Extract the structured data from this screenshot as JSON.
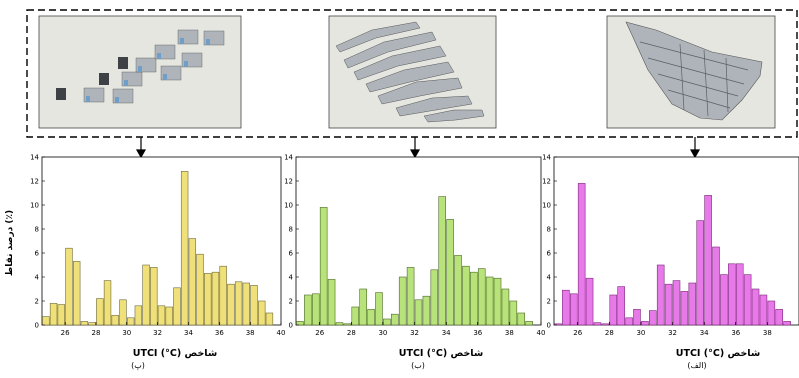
{
  "ylabel": "درصد نقاط (٪)",
  "caption_tags": [
    "(پ)",
    "(ب)",
    "(الف)"
  ],
  "colors": {
    "panel_bg": "#e6e6e0",
    "frame_dash": "#000000",
    "building": "#aeb4ba",
    "building_dark": "#3e4247",
    "building_blue": "#6f9ec8"
  },
  "chart_data": [
    {
      "type": "bar",
      "caption": "(پ)",
      "xlabel": "UTCI (°C)  شاخص",
      "xlim": [
        24.5,
        40
      ],
      "ylim": [
        0,
        14
      ],
      "xticks": [
        26,
        28,
        30,
        32,
        34,
        36,
        38,
        40
      ],
      "yticks": [
        0,
        2,
        4,
        6,
        8,
        10,
        12,
        14
      ],
      "bar_color": "#efe07a",
      "bar_edge": "#6e6a3a",
      "series": [
        {
          "x": [
            24.75,
            25.25,
            25.75,
            26.25,
            26.75,
            27.25,
            27.75,
            28.25,
            28.75,
            29.25,
            29.75,
            30.25,
            30.75,
            31.25,
            31.75,
            32.25,
            32.75,
            33.25,
            33.75,
            34.25,
            34.75,
            35.25,
            35.75,
            36.25,
            36.75,
            37.25,
            37.75,
            38.25,
            38.75,
            39.25
          ],
          "values": [
            0.7,
            1.8,
            1.7,
            6.4,
            5.3,
            0.3,
            0.2,
            2.2,
            3.7,
            0.8,
            2.1,
            0.6,
            1.6,
            5.0,
            4.8,
            1.6,
            1.5,
            3.1,
            12.8,
            7.2,
            5.9,
            4.3,
            4.4,
            4.9,
            3.4,
            3.6,
            3.5,
            3.3,
            2.0,
            1.0
          ]
        }
      ]
    },
    {
      "type": "bar",
      "caption": "(ب)",
      "xlabel": "UTCI (°C)  شاخص",
      "xlim": [
        24.5,
        40
      ],
      "ylim": [
        0,
        14
      ],
      "xticks": [
        26,
        28,
        30,
        32,
        34,
        36,
        38,
        40
      ],
      "yticks": [
        0,
        2,
        4,
        6,
        8,
        10,
        12,
        14
      ],
      "bar_color": "#b8e27a",
      "bar_edge": "#4f6a2a",
      "series": [
        {
          "x": [
            24.75,
            25.25,
            25.75,
            26.25,
            26.75,
            27.25,
            27.75,
            28.25,
            28.75,
            29.25,
            29.75,
            30.25,
            30.75,
            31.25,
            31.75,
            32.25,
            32.75,
            33.25,
            33.75,
            34.25,
            34.75,
            35.25,
            35.75,
            36.25,
            36.75,
            37.25,
            37.75,
            38.25,
            38.75,
            39.25
          ],
          "values": [
            0.3,
            2.5,
            2.6,
            9.8,
            3.8,
            0.2,
            0.1,
            1.5,
            3.0,
            1.3,
            2.7,
            0.5,
            0.9,
            4.0,
            4.8,
            2.1,
            2.4,
            4.6,
            10.7,
            8.8,
            5.8,
            4.9,
            4.4,
            4.7,
            4.0,
            3.9,
            3.0,
            2.0,
            1.0,
            0.3
          ]
        }
      ]
    },
    {
      "type": "bar",
      "caption": "(الف)",
      "xlabel": "UTCI (°C)  شاخص",
      "xlim": [
        24.5,
        40
      ],
      "ylim": [
        0,
        14
      ],
      "xticks": [
        26,
        28,
        30,
        32,
        34,
        36,
        38
      ],
      "yticks": [
        0,
        2,
        4,
        6,
        8,
        10,
        12,
        14
      ],
      "bar_color": "#e879e8",
      "bar_edge": "#7a2a7a",
      "series": [
        {
          "x": [
            24.75,
            25.25,
            25.75,
            26.25,
            26.75,
            27.25,
            27.75,
            28.25,
            28.75,
            29.25,
            29.75,
            30.25,
            30.75,
            31.25,
            31.75,
            32.25,
            32.75,
            33.25,
            33.75,
            34.25,
            34.75,
            35.25,
            35.75,
            36.25,
            36.75,
            37.25,
            37.75,
            38.25,
            38.75,
            39.25
          ],
          "values": [
            0.1,
            2.9,
            2.6,
            11.8,
            3.9,
            0.2,
            0.1,
            2.5,
            3.2,
            0.6,
            1.3,
            0.3,
            1.2,
            5.0,
            3.4,
            3.7,
            2.8,
            3.5,
            8.7,
            10.8,
            6.5,
            4.2,
            5.1,
            5.1,
            4.2,
            3.0,
            2.5,
            2.0,
            1.3,
            0.3
          ]
        }
      ]
    }
  ]
}
